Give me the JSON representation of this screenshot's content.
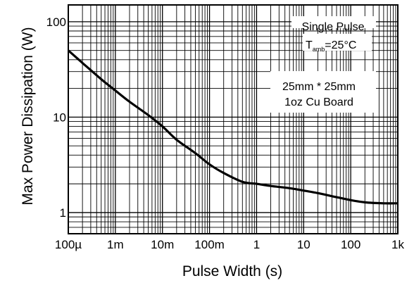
{
  "chart_data": {
    "type": "line",
    "x_scale": "log",
    "y_scale": "log",
    "xlabel": "Pulse Width (s)",
    "ylabel": "Max Power Dissipation (W)",
    "xlim": [
      0.0001,
      1000
    ],
    "ylim": [
      0.6,
      150
    ],
    "grid": true,
    "x_ticks": [
      {
        "value": 0.0001,
        "label": "100µ"
      },
      {
        "value": 0.001,
        "label": "1m"
      },
      {
        "value": 0.01,
        "label": "10m"
      },
      {
        "value": 0.1,
        "label": "100m"
      },
      {
        "value": 1,
        "label": "1"
      },
      {
        "value": 10,
        "label": "10"
      },
      {
        "value": 100,
        "label": "100"
      },
      {
        "value": 1000,
        "label": "1k"
      }
    ],
    "y_ticks": [
      {
        "value": 1,
        "label": "1"
      },
      {
        "value": 10,
        "label": "10"
      },
      {
        "value": 100,
        "label": "100"
      }
    ],
    "annotations": {
      "pulse_label": "Single Pulse",
      "temp_prefix": "T",
      "temp_subscript": "amb",
      "temp_suffix": "=25°C",
      "board_line1": "25mm * 25mm",
      "board_line2": "1oz Cu Board"
    },
    "series": [
      {
        "x": [
          0.0001,
          0.0002,
          0.0005,
          0.001,
          0.002,
          0.005,
          0.01,
          0.02,
          0.05,
          0.1,
          0.2,
          0.5,
          1,
          2,
          5,
          10,
          20,
          50,
          100,
          200,
          500,
          1000
        ],
        "y": [
          50,
          37,
          25,
          19,
          14.5,
          10.5,
          8,
          5.8,
          4.2,
          3.2,
          2.6,
          2.1,
          2.0,
          1.9,
          1.8,
          1.7,
          1.6,
          1.45,
          1.35,
          1.28,
          1.25,
          1.25
        ]
      }
    ]
  }
}
